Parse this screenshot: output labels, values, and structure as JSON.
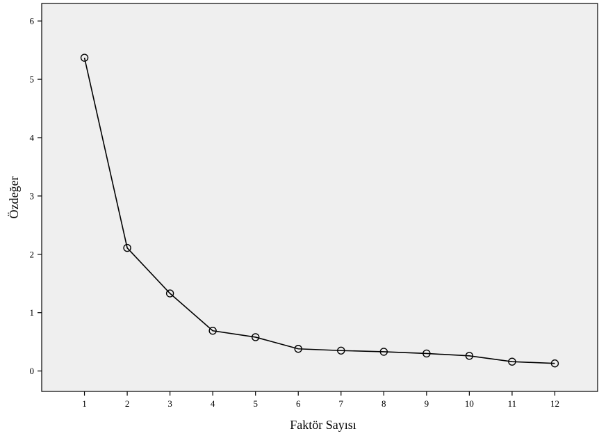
{
  "chart_data": {
    "type": "line",
    "xlabel": "Faktör Sayısı",
    "ylabel": "Özdeğer",
    "x": [
      1,
      2,
      3,
      4,
      5,
      6,
      7,
      8,
      9,
      10,
      11,
      12
    ],
    "x_tick_labels": [
      "1",
      "2",
      "3",
      "4",
      "5",
      "6",
      "7",
      "8",
      "9",
      "10",
      "11",
      "12"
    ],
    "ylim": [
      -0.35,
      6.3
    ],
    "xlim": [
      0.0,
      13.0
    ],
    "y_ticks": [
      0,
      1,
      2,
      3,
      4,
      5,
      6
    ],
    "y_tick_labels": [
      "0",
      "1",
      "2",
      "3",
      "4",
      "5",
      "6"
    ],
    "series": [
      {
        "values": [
          5.37,
          2.11,
          1.33,
          0.69,
          0.58,
          0.38,
          0.35,
          0.33,
          0.3,
          0.26,
          0.16,
          0.13
        ]
      }
    ],
    "marker": "circle-open",
    "grid": false,
    "colors": {
      "plot_background": "#efefef",
      "line": "#000000",
      "page_background": "#ffffff"
    }
  }
}
